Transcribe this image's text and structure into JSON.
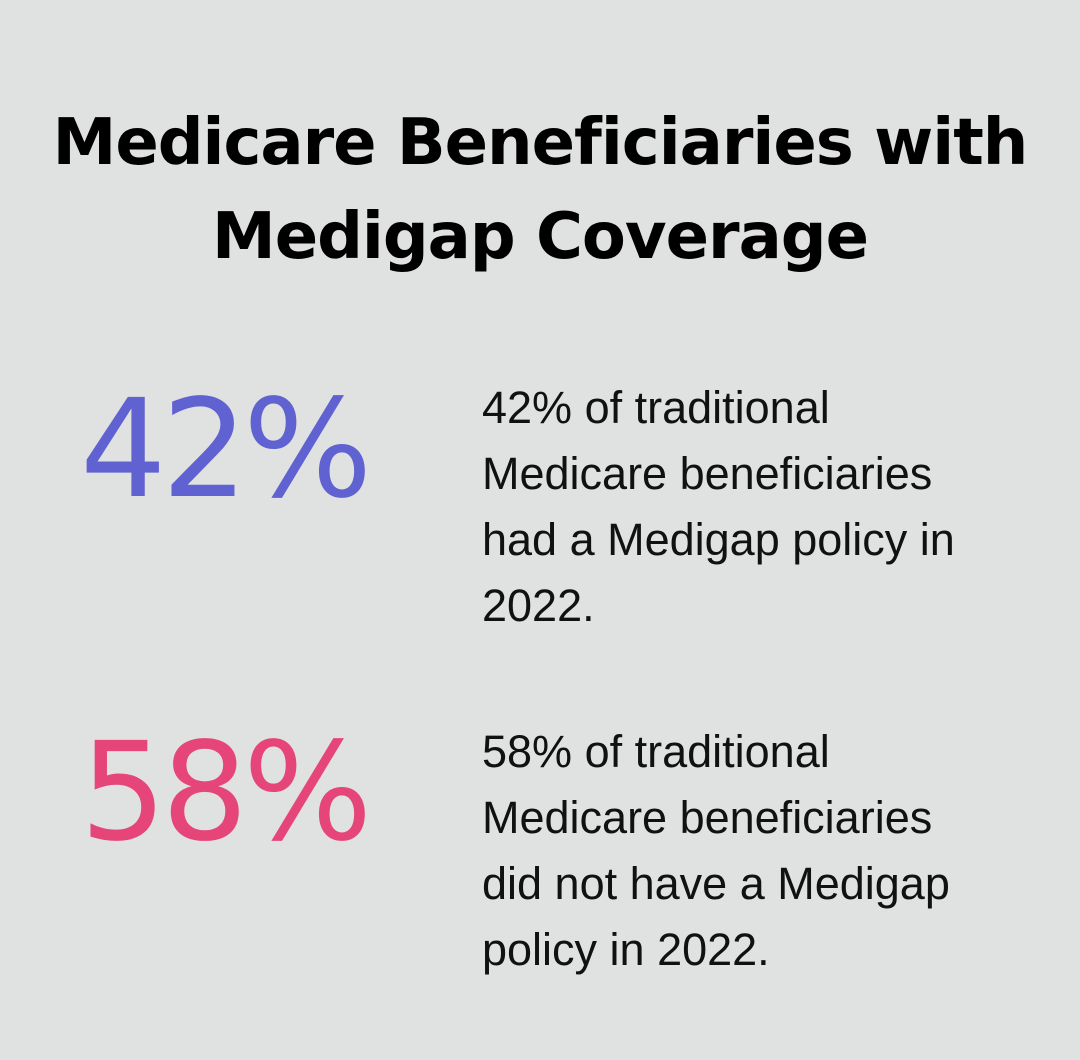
{
  "chart_data": {
    "type": "table",
    "title": "Medicare Beneficiaries with Medigap Coverage",
    "title_lines": [
      "Medicare Beneficiaries with",
      "Medigap Coverage"
    ],
    "stats": [
      {
        "value_label": "42%",
        "value": 42,
        "color": "#6062d1",
        "description_lines": [
          "42% of traditional",
          "Medicare beneficiaries",
          "had a Medigap policy in",
          "2022."
        ]
      },
      {
        "value_label": "58%",
        "value": 58,
        "color": "#e6457a",
        "description_lines": [
          "58% of traditional",
          "Medicare beneficiaries",
          "did not have a Medigap",
          "policy in 2022."
        ]
      }
    ]
  }
}
